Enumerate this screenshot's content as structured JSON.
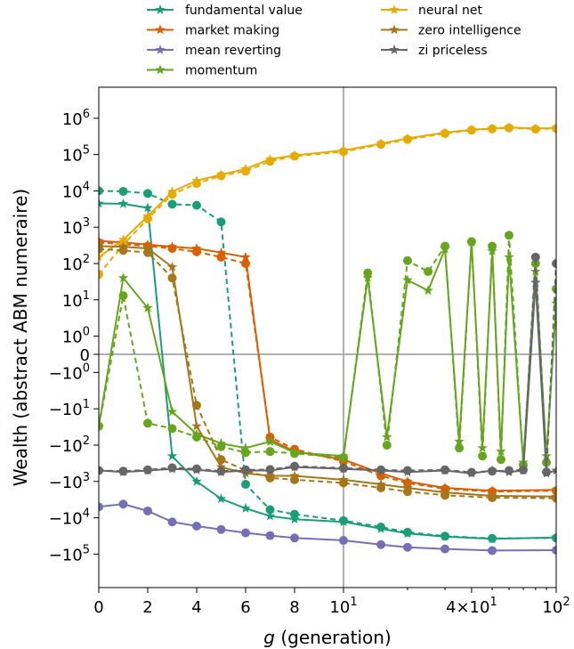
{
  "chart_data": {
    "type": "line",
    "title": "",
    "xlabel": "g (generation)",
    "ylabel": "Wealth (abstract ABM numeraire)",
    "x_scale": "symlog (linear 0–10, log 10–100)",
    "y_scale": "symlog (linthresh 1)",
    "xlim": [
      0,
      100
    ],
    "ylim": [
      -1000000,
      10000000
    ],
    "x_ticks": [
      {
        "value": 0,
        "label": "0"
      },
      {
        "value": 2,
        "label": "2"
      },
      {
        "value": 4,
        "label": "4"
      },
      {
        "value": 6,
        "label": "6"
      },
      {
        "value": 8,
        "label": "8"
      },
      {
        "value": 10,
        "label": "10",
        "sup": "1"
      },
      {
        "value": 40,
        "label": "4×10",
        "sup": "1"
      },
      {
        "value": 100,
        "label": "10",
        "sup": "2"
      }
    ],
    "y_ticks": [
      {
        "value": 1000000,
        "label": "10",
        "sup": "6"
      },
      {
        "value": 100000,
        "label": "10",
        "sup": "5"
      },
      {
        "value": 10000,
        "label": "10",
        "sup": "4"
      },
      {
        "value": 1000,
        "label": "10",
        "sup": "3"
      },
      {
        "value": 100,
        "label": "10",
        "sup": "2"
      },
      {
        "value": 10,
        "label": "10",
        "sup": "1"
      },
      {
        "value": 1,
        "label": "10",
        "sup": "0"
      },
      {
        "value": 0,
        "label": "0",
        "sup": ""
      },
      {
        "value": -1,
        "label": "−10",
        "sup": "0"
      },
      {
        "value": -10,
        "label": "−10",
        "sup": "1"
      },
      {
        "value": -100,
        "label": "−10",
        "sup": "2"
      },
      {
        "value": -1000,
        "label": "−10",
        "sup": "3"
      },
      {
        "value": -10000,
        "label": "−10",
        "sup": "4"
      },
      {
        "value": -100000,
        "label": "−10",
        "sup": "5"
      }
    ],
    "grid": "lines at x = 10 and y = 0",
    "legend_placement": "top (above axes, 2 columns)",
    "legend": {
      "markers": "stars = solid line series; circles = dashed line series",
      "entries": [
        {
          "name": "fundamental value",
          "color": "#1b9e77"
        },
        {
          "name": "market making",
          "color": "#d95f02"
        },
        {
          "name": "mean reverting",
          "color": "#7570b3"
        },
        {
          "name": "momentum",
          "color": "#66a61e"
        },
        {
          "name": "neural net",
          "color": "#e6ab02"
        },
        {
          "name": "zero intelligence",
          "color": "#a6761d"
        },
        {
          "name": "zi priceless",
          "color": "#666666"
        }
      ]
    },
    "series": [
      {
        "name": "fundamental value",
        "color": "#1b9e77",
        "style": "solid",
        "marker": "star",
        "x": [
          0,
          1,
          2,
          3,
          4,
          5,
          6,
          7,
          8,
          10,
          15,
          20,
          30,
          50,
          100
        ],
        "y": [
          4500,
          4400,
          3400,
          -200,
          -1000,
          -3000,
          -5500,
          -9000,
          -11000,
          -13000,
          -20000,
          -27000,
          -33000,
          -38000,
          -35000
        ]
      },
      {
        "name": "fundamental value",
        "color": "#1b9e77",
        "style": "dashed",
        "marker": "circle",
        "x": [
          0,
          1,
          2,
          3,
          4,
          5,
          6,
          7,
          8,
          10,
          15,
          20,
          30,
          50,
          100
        ],
        "y": [
          10000,
          9700,
          8500,
          4300,
          4000,
          1400,
          -1200,
          -6000,
          -8000,
          -12000,
          -18000,
          -25000,
          -32000,
          -37000,
          -36000
        ]
      },
      {
        "name": "market making",
        "color": "#d95f02",
        "style": "solid",
        "marker": "star",
        "x": [
          0,
          1,
          2,
          3,
          4,
          5,
          6,
          7,
          8,
          10,
          15,
          20,
          30,
          50,
          100
        ],
        "y": [
          420,
          380,
          330,
          290,
          260,
          200,
          150,
          -70,
          -150,
          -250,
          -600,
          -1000,
          -1500,
          -1800,
          -1700
        ]
      },
      {
        "name": "market making",
        "color": "#d95f02",
        "style": "dashed",
        "marker": "circle",
        "x": [
          0,
          1,
          2,
          3,
          4,
          5,
          6,
          7,
          8,
          10,
          15,
          20,
          30,
          50,
          100
        ],
        "y": [
          380,
          340,
          300,
          260,
          210,
          150,
          100,
          -60,
          -130,
          -280,
          -700,
          -1100,
          -1600,
          -1900,
          -1800
        ]
      },
      {
        "name": "mean reverting",
        "color": "#7570b3",
        "style": "solid",
        "marker": "circle",
        "x": [
          0,
          1,
          2,
          3,
          4,
          5,
          6,
          7,
          8,
          10,
          15,
          20,
          30,
          50,
          100
        ],
        "y": [
          -5000,
          -4200,
          -6500,
          -13000,
          -17000,
          -21000,
          -26000,
          -31000,
          -36000,
          -42000,
          -55000,
          -65000,
          -72000,
          -80000,
          -78000
        ]
      },
      {
        "name": "momentum",
        "color": "#66a61e",
        "style": "solid",
        "marker": "star",
        "x": [
          0,
          1,
          2,
          3,
          4,
          5,
          6,
          7,
          8,
          10,
          13,
          16,
          20,
          25,
          30,
          35,
          40,
          45,
          50,
          55,
          60,
          70,
          80,
          90,
          100
        ],
        "y": [
          -30,
          40,
          6,
          -12,
          -50,
          -90,
          -120,
          -80,
          -160,
          -200,
          40,
          -60,
          35,
          18,
          250,
          -80,
          380,
          -120,
          220,
          -150,
          150,
          -300,
          60,
          -200,
          8
        ]
      },
      {
        "name": "momentum",
        "color": "#66a61e",
        "style": "dashed",
        "marker": "circle",
        "x": [
          0,
          1,
          2,
          3,
          4,
          5,
          6,
          7,
          8,
          10,
          13,
          16,
          20,
          25,
          30,
          35,
          40,
          45,
          50,
          55,
          60,
          70,
          80,
          90,
          100
        ],
        "y": [
          -30,
          13,
          -25,
          -35,
          -60,
          -110,
          -160,
          -150,
          -170,
          -220,
          55,
          -100,
          120,
          60,
          300,
          -120,
          400,
          -200,
          300,
          -250,
          600,
          -350,
          100,
          -300,
          20
        ]
      },
      {
        "name": "neural net",
        "color": "#e6ab02",
        "style": "solid",
        "marker": "star",
        "x": [
          0,
          1,
          2,
          3,
          4,
          5,
          6,
          7,
          8,
          10,
          15,
          20,
          30,
          40,
          50,
          60,
          80,
          100
        ],
        "y": [
          150,
          450,
          2000,
          9500,
          19000,
          28000,
          40000,
          75000,
          95000,
          130000,
          200000,
          280000,
          400000,
          480000,
          520000,
          560000,
          520000,
          540000
        ]
      },
      {
        "name": "neural net",
        "color": "#e6ab02",
        "style": "dashed",
        "marker": "circle",
        "x": [
          0,
          1,
          2,
          3,
          4,
          5,
          6,
          7,
          8,
          10,
          15,
          20,
          30,
          40,
          50,
          60,
          80,
          100
        ],
        "y": [
          50,
          330,
          1700,
          8000,
          16000,
          26000,
          35000,
          65000,
          90000,
          120000,
          190000,
          260000,
          380000,
          470000,
          510000,
          540000,
          500000,
          520000
        ]
      },
      {
        "name": "zero intelligence",
        "color": "#a6761d",
        "style": "solid",
        "marker": "star",
        "x": [
          0,
          1,
          2,
          3,
          4,
          5,
          6,
          7,
          8,
          10,
          15,
          20,
          30,
          50,
          100
        ],
        "y": [
          300,
          290,
          260,
          80,
          -30,
          -400,
          -600,
          -700,
          -700,
          -900,
          -1200,
          -1500,
          -2000,
          -2500,
          -2600
        ]
      },
      {
        "name": "zero intelligence",
        "color": "#a6761d",
        "style": "dashed",
        "marker": "circle",
        "x": [
          0,
          1,
          2,
          3,
          4,
          5,
          6,
          7,
          8,
          10,
          15,
          20,
          30,
          50,
          100
        ],
        "y": [
          250,
          230,
          200,
          40,
          -8,
          -250,
          -500,
          -800,
          -900,
          -1100,
          -1500,
          -1900,
          -2400,
          -2800,
          -2900
        ]
      },
      {
        "name": "zi priceless",
        "color": "#666666",
        "style": "solid",
        "marker": "star",
        "x": [
          0,
          1,
          2,
          3,
          4,
          5,
          6,
          7,
          8,
          10,
          15,
          20,
          30,
          40,
          50,
          60,
          70,
          80,
          90,
          100
        ],
        "y": [
          -500,
          -550,
          -500,
          -450,
          -480,
          -550,
          -500,
          -500,
          -400,
          -450,
          -500,
          -550,
          -500,
          -600,
          -500,
          -550,
          -500,
          30,
          -600,
          -500
        ]
      },
      {
        "name": "zi priceless",
        "color": "#666666",
        "style": "dashed",
        "marker": "circle",
        "x": [
          0,
          1,
          2,
          3,
          4,
          5,
          6,
          7,
          8,
          10,
          15,
          20,
          30,
          40,
          50,
          60,
          70,
          80,
          90,
          100
        ],
        "y": [
          -500,
          -520,
          -480,
          -420,
          -450,
          -520,
          -480,
          -470,
          -380,
          -430,
          -480,
          -500,
          -480,
          -560,
          -520,
          -500,
          -480,
          150,
          -550,
          100
        ]
      }
    ]
  }
}
